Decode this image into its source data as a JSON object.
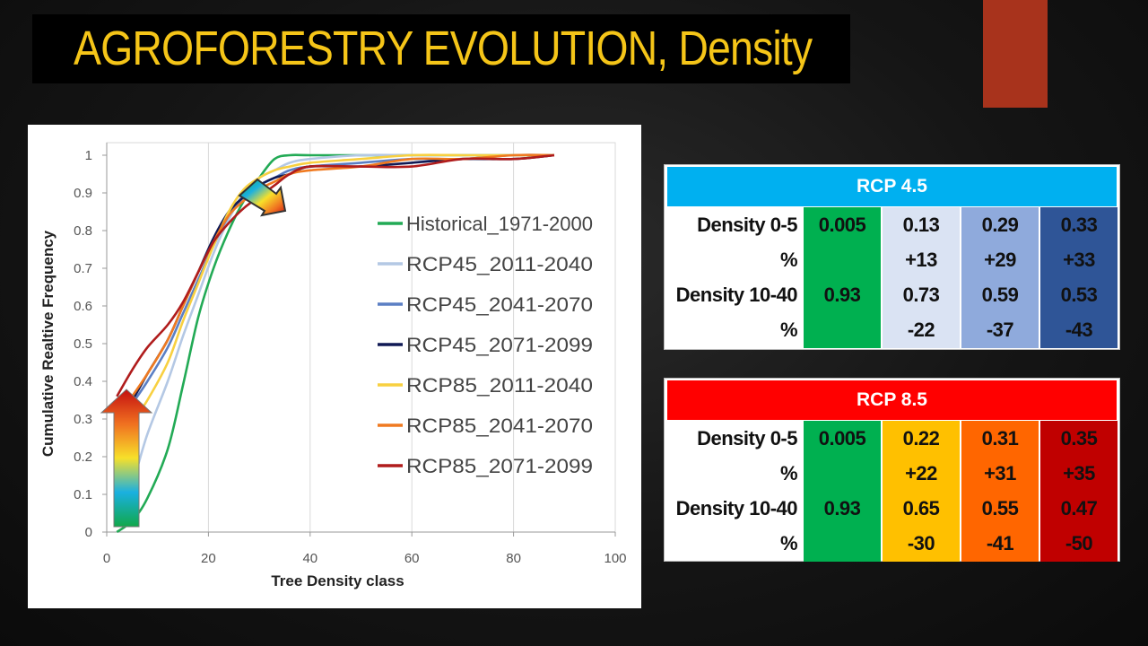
{
  "slide": {
    "title": "AGROFORESTRY EVOLUTION, Density",
    "colors": {
      "title": "#f5c518",
      "accent": "#a8331c",
      "title_bg": "#000000"
    }
  },
  "chart_data": {
    "type": "line",
    "xlabel": "Tree Density class",
    "ylabel": "Cumulative Realtive Frequency",
    "xlim": [
      0,
      100
    ],
    "ylim": [
      0,
      1
    ],
    "xticks": [
      "0",
      "20",
      "40",
      "60",
      "80",
      "100"
    ],
    "yticks": [
      "0",
      "0.1",
      "0.2",
      "0.3",
      "0.4",
      "0.5",
      "0.6",
      "0.7",
      "0.8",
      "0.9",
      "1"
    ],
    "grid": "vertical",
    "legend_position": "right",
    "series": [
      {
        "name": "Historical_1971-2000",
        "color": "#22aa55",
        "x": [
          2,
          5,
          8,
          12,
          15,
          18,
          21,
          24,
          27,
          30,
          33,
          36,
          40,
          50,
          60,
          70,
          80,
          88
        ],
        "y": [
          0.0,
          0.03,
          0.09,
          0.22,
          0.39,
          0.57,
          0.7,
          0.8,
          0.88,
          0.94,
          0.99,
          1.0,
          1.0,
          1.0,
          1.0,
          1.0,
          1.0,
          1.0
        ]
      },
      {
        "name": "RCP45_2011-2040",
        "color": "#b4c8e4",
        "x": [
          2,
          5,
          8,
          12,
          15,
          18,
          21,
          24,
          27,
          30,
          33,
          36,
          40,
          50,
          60,
          70,
          80,
          88
        ],
        "y": [
          0.06,
          0.13,
          0.26,
          0.4,
          0.52,
          0.63,
          0.74,
          0.83,
          0.9,
          0.94,
          0.96,
          0.98,
          0.99,
          1.0,
          1.0,
          1.0,
          1.0,
          1.0
        ]
      },
      {
        "name": "RCP45_2041-2070",
        "color": "#5b7fc4",
        "x": [
          2,
          5,
          8,
          12,
          15,
          18,
          21,
          24,
          27,
          30,
          33,
          36,
          40,
          50,
          60,
          70,
          80,
          88
        ],
        "y": [
          0.28,
          0.34,
          0.4,
          0.49,
          0.58,
          0.67,
          0.76,
          0.84,
          0.89,
          0.92,
          0.94,
          0.96,
          0.97,
          0.98,
          0.99,
          0.99,
          1.0,
          1.0
        ]
      },
      {
        "name": "RCP45_2071-2099",
        "color": "#101a55",
        "x": [
          2,
          5,
          8,
          12,
          15,
          18,
          21,
          24,
          27,
          30,
          33,
          36,
          40,
          50,
          60,
          70,
          80,
          88
        ],
        "y": [
          0.3,
          0.35,
          0.42,
          0.51,
          0.6,
          0.69,
          0.78,
          0.85,
          0.89,
          0.92,
          0.94,
          0.95,
          0.97,
          0.97,
          0.98,
          0.99,
          0.99,
          1.0
        ]
      },
      {
        "name": "RCP85_2011-2040",
        "color": "#f8d040",
        "x": [
          2,
          5,
          8,
          12,
          15,
          18,
          21,
          24,
          27,
          30,
          33,
          36,
          40,
          50,
          60,
          70,
          80,
          88
        ],
        "y": [
          0.22,
          0.29,
          0.35,
          0.45,
          0.56,
          0.66,
          0.76,
          0.85,
          0.91,
          0.94,
          0.96,
          0.97,
          0.98,
          0.99,
          1.0,
          1.0,
          1.0,
          1.0
        ]
      },
      {
        "name": "RCP85_2041-2070",
        "color": "#f07a20",
        "x": [
          2,
          5,
          8,
          12,
          15,
          18,
          21,
          24,
          27,
          30,
          33,
          36,
          40,
          50,
          60,
          70,
          80,
          88
        ],
        "y": [
          0.3,
          0.36,
          0.42,
          0.51,
          0.6,
          0.69,
          0.77,
          0.84,
          0.88,
          0.91,
          0.93,
          0.95,
          0.96,
          0.97,
          0.99,
          0.99,
          1.0,
          1.0
        ]
      },
      {
        "name": "RCP85_2071-2099",
        "color": "#b01c1c",
        "x": [
          2,
          5,
          8,
          12,
          15,
          18,
          21,
          24,
          27,
          30,
          33,
          36,
          40,
          50,
          60,
          70,
          80,
          88
        ],
        "y": [
          0.36,
          0.43,
          0.49,
          0.55,
          0.61,
          0.69,
          0.77,
          0.82,
          0.86,
          0.89,
          0.92,
          0.95,
          0.97,
          0.97,
          0.97,
          0.99,
          0.99,
          1.0
        ]
      }
    ]
  },
  "tables": [
    {
      "header": "RCP 4.5",
      "header_color": "#00b0f0",
      "rows": [
        {
          "label": "Density  0-5",
          "values": [
            "0.005",
            "0.13",
            "0.29",
            "0.33"
          ]
        },
        {
          "label": "%",
          "values": [
            "",
            "+13",
            "+29",
            "+33"
          ]
        },
        {
          "label": "Density  10-40",
          "values": [
            "0.93",
            "0.73",
            "0.59",
            "0.53"
          ]
        },
        {
          "label": "%",
          "values": [
            "",
            "-22",
            "-37",
            "-43"
          ]
        }
      ],
      "column_colors": [
        "#00b050",
        "#dae3f3",
        "#8faadc",
        "#2f5597"
      ]
    },
    {
      "header": "RCP 8.5",
      "header_color": "#ff0000",
      "rows": [
        {
          "label": "Density 0-5",
          "values": [
            "0.005",
            "0.22",
            "0.31",
            "0.35"
          ]
        },
        {
          "label": "%",
          "values": [
            "",
            "+22",
            "+31",
            "+35"
          ]
        },
        {
          "label": "Density 10-40",
          "values": [
            "0.93",
            "0.65",
            "0.55",
            "0.47"
          ]
        },
        {
          "label": "%",
          "values": [
            "",
            "-30",
            "-41",
            "-50"
          ]
        }
      ],
      "column_colors": [
        "#00b050",
        "#ffc000",
        "#ff6600",
        "#c00000"
      ]
    }
  ]
}
